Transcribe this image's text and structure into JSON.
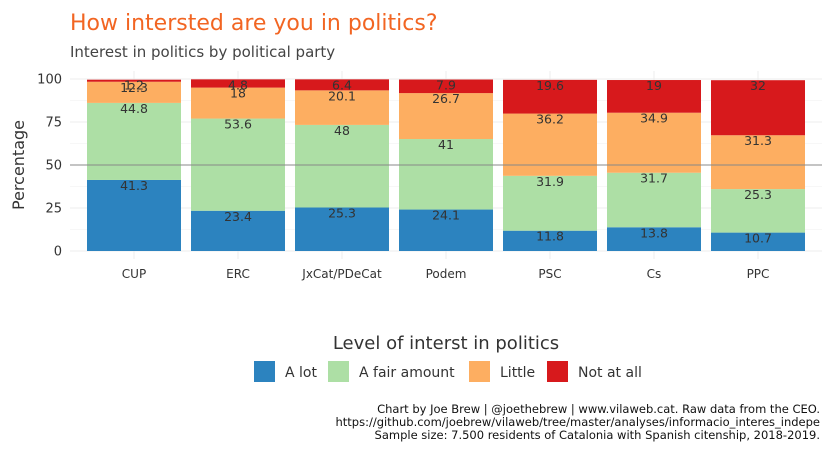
{
  "title": "How intersted are you in politics?",
  "subtitle": "Interest in politics by political party",
  "caption": [
    "Chart by Joe Brew | @joethebrew | www.vilaweb.cat. Raw data from the CEO.",
    "https://github.com/joebrew/vilaweb/tree/master/analyses/informacio_interes_indepe",
    "Sample size: 7.500 residents of Catalonia with Spanish citenship, 2018-2019."
  ],
  "colors": {
    "title": "#f26522",
    "reference_line": "#888888",
    "grid": "#ececec"
  },
  "chart_data": {
    "type": "bar",
    "stacked": true,
    "categories": [
      "CUP",
      "ERC",
      "JxCat/PDeCat",
      "Podem",
      "PSC",
      "Cs",
      "PPC"
    ],
    "series": [
      {
        "name": "A lot",
        "color": "#2c83bf",
        "values": [
          41.3,
          23.4,
          25.3,
          24.1,
          11.8,
          13.8,
          10.7
        ]
      },
      {
        "name": "A fair amount",
        "color": "#addfa5",
        "values": [
          44.8,
          53.6,
          48,
          41,
          31.9,
          31.7,
          25.3
        ]
      },
      {
        "name": "Little",
        "color": "#fdae61",
        "values": [
          12.3,
          18,
          20.1,
          26.7,
          36.2,
          34.9,
          31.3
        ]
      },
      {
        "name": "Not at all",
        "color": "#d7191c",
        "values": [
          1.2,
          4.8,
          6.4,
          7.9,
          19.6,
          19,
          32
        ]
      }
    ],
    "data_labels": [
      [
        "41.3",
        "23.4",
        "25.3",
        "24.1",
        "11.8",
        "13.8",
        "10.7"
      ],
      [
        "44.8",
        "53.6",
        "48",
        "41",
        "31.9",
        "31.7",
        "25.3"
      ],
      [
        "12.3",
        "18",
        "20.1",
        "26.7",
        "36.2",
        "34.9",
        "31.3"
      ],
      [
        "1.2",
        "4.8",
        "6.4",
        "7.9",
        "19.6",
        "19",
        "32"
      ]
    ],
    "ylabel": "Percentage",
    "xlabel": "",
    "ylim": [
      0,
      100
    ],
    "yticks": [
      0,
      25,
      50,
      75,
      100
    ],
    "reference_line": 50,
    "grid": true,
    "legend_title": "Level of interst in politics",
    "legend_position": "bottom"
  }
}
